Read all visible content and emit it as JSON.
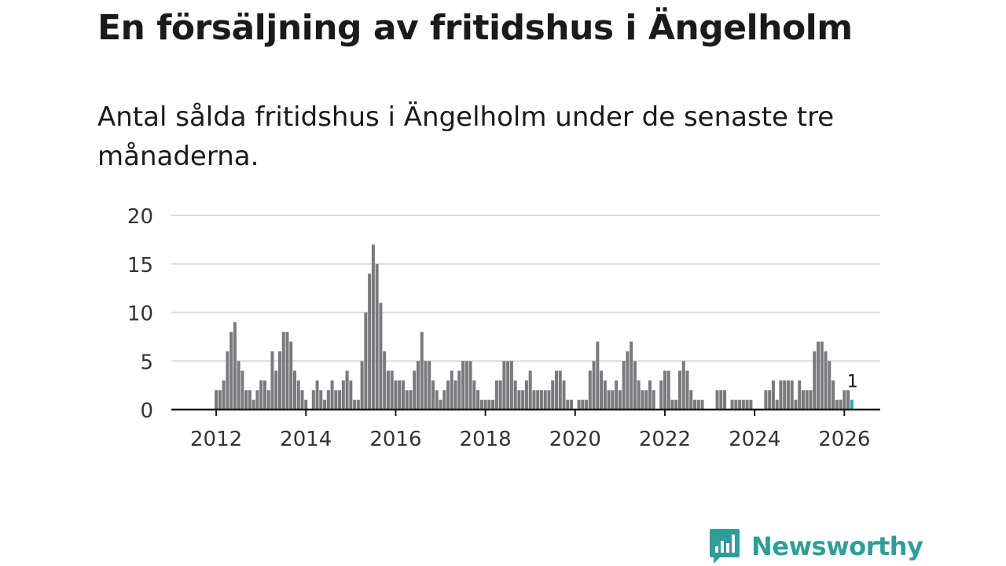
{
  "header": {
    "title": "En försäljning av fritidshus i Ängelholm",
    "subtitle": "Antal sålda fritidshus i Ängelholm under de senaste tre månaderna."
  },
  "brand": {
    "name": "Newsworthy",
    "color": "#2f9e99",
    "logo_icon": "bar-chart-speech-bubble-icon"
  },
  "colors": {
    "bar": "#7a7a7e",
    "highlight": "#1ab0a8",
    "grid": "#dcdcdc",
    "axis": "#1a1a1a",
    "tick_text": "#333333"
  },
  "chart_data": {
    "type": "bar",
    "title": "En försäljning av fritidshus i Ängelholm",
    "subtitle": "Antal sålda fritidshus i Ängelholm under de senaste tre månaderna.",
    "xlabel": "",
    "ylabel": "",
    "ylim": [
      0,
      20
    ],
    "yticks": [
      0,
      5,
      10,
      15,
      20
    ],
    "grid": true,
    "x_start": 2012.0,
    "x_step": 0.08333,
    "x_range": [
      2011.0,
      2026.8
    ],
    "xticks": [
      2012,
      2014,
      2016,
      2018,
      2020,
      2022,
      2024,
      2026
    ],
    "values": [
      2,
      2,
      3,
      6,
      8,
      9,
      5,
      4,
      2,
      2,
      1,
      2,
      3,
      3,
      2,
      6,
      4,
      6,
      8,
      8,
      7,
      4,
      3,
      2,
      1,
      0,
      2,
      3,
      2,
      1,
      2,
      3,
      2,
      2,
      3,
      4,
      3,
      1,
      1,
      5,
      10,
      14,
      17,
      15,
      11,
      6,
      4,
      4,
      3,
      3,
      3,
      2,
      2,
      4,
      5,
      8,
      5,
      5,
      3,
      2,
      1,
      2,
      3,
      4,
      3,
      4,
      5,
      5,
      5,
      3,
      2,
      1,
      1,
      1,
      1,
      3,
      3,
      5,
      5,
      5,
      3,
      2,
      2,
      3,
      4,
      2,
      2,
      2,
      2,
      2,
      3,
      4,
      4,
      3,
      1,
      1,
      0,
      1,
      1,
      1,
      4,
      5,
      7,
      4,
      3,
      2,
      2,
      3,
      2,
      5,
      6,
      7,
      5,
      3,
      2,
      2,
      3,
      2,
      0,
      3,
      4,
      4,
      1,
      1,
      4,
      5,
      4,
      2,
      1,
      1,
      1,
      0,
      0,
      0,
      2,
      2,
      2,
      0,
      1,
      1,
      1,
      1,
      1,
      1,
      0,
      0,
      0,
      2,
      2,
      3,
      1,
      3,
      3,
      3,
      3,
      1,
      3,
      2,
      2,
      2,
      6,
      7,
      7,
      6,
      5,
      3,
      1,
      1,
      2,
      2,
      1
    ],
    "highlight_index": 170,
    "annotations": [
      {
        "index": 170,
        "text": "1"
      }
    ]
  }
}
